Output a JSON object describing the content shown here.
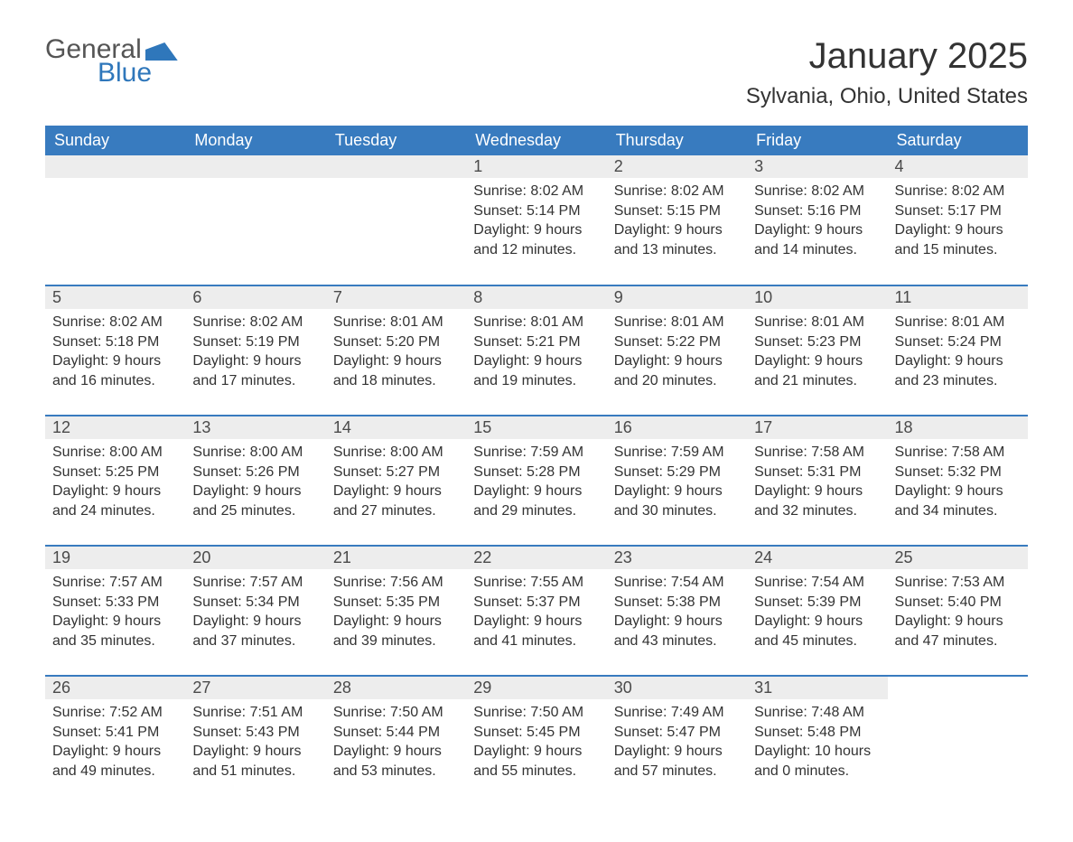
{
  "logo": {
    "line1": "General",
    "line2": "Blue"
  },
  "title": "January 2025",
  "location": "Sylvania, Ohio, United States",
  "colors": {
    "header_bg": "#387bbf",
    "header_text": "#ffffff",
    "daynum_bg": "#ededed",
    "row_border": "#387bbf",
    "text": "#333333",
    "logo_blue": "#2f77bb",
    "background": "#ffffff"
  },
  "typography": {
    "title_fontsize": 40,
    "location_fontsize": 24,
    "header_fontsize": 18,
    "daynum_fontsize": 18,
    "body_fontsize": 16
  },
  "day_labels": [
    "Sunday",
    "Monday",
    "Tuesday",
    "Wednesday",
    "Thursday",
    "Friday",
    "Saturday"
  ],
  "weeks": [
    [
      null,
      null,
      null,
      {
        "n": "1",
        "sunrise": "8:02 AM",
        "sunset": "5:14 PM",
        "daylight": "9 hours and 12 minutes."
      },
      {
        "n": "2",
        "sunrise": "8:02 AM",
        "sunset": "5:15 PM",
        "daylight": "9 hours and 13 minutes."
      },
      {
        "n": "3",
        "sunrise": "8:02 AM",
        "sunset": "5:16 PM",
        "daylight": "9 hours and 14 minutes."
      },
      {
        "n": "4",
        "sunrise": "8:02 AM",
        "sunset": "5:17 PM",
        "daylight": "9 hours and 15 minutes."
      }
    ],
    [
      {
        "n": "5",
        "sunrise": "8:02 AM",
        "sunset": "5:18 PM",
        "daylight": "9 hours and 16 minutes."
      },
      {
        "n": "6",
        "sunrise": "8:02 AM",
        "sunset": "5:19 PM",
        "daylight": "9 hours and 17 minutes."
      },
      {
        "n": "7",
        "sunrise": "8:01 AM",
        "sunset": "5:20 PM",
        "daylight": "9 hours and 18 minutes."
      },
      {
        "n": "8",
        "sunrise": "8:01 AM",
        "sunset": "5:21 PM",
        "daylight": "9 hours and 19 minutes."
      },
      {
        "n": "9",
        "sunrise": "8:01 AM",
        "sunset": "5:22 PM",
        "daylight": "9 hours and 20 minutes."
      },
      {
        "n": "10",
        "sunrise": "8:01 AM",
        "sunset": "5:23 PM",
        "daylight": "9 hours and 21 minutes."
      },
      {
        "n": "11",
        "sunrise": "8:01 AM",
        "sunset": "5:24 PM",
        "daylight": "9 hours and 23 minutes."
      }
    ],
    [
      {
        "n": "12",
        "sunrise": "8:00 AM",
        "sunset": "5:25 PM",
        "daylight": "9 hours and 24 minutes."
      },
      {
        "n": "13",
        "sunrise": "8:00 AM",
        "sunset": "5:26 PM",
        "daylight": "9 hours and 25 minutes."
      },
      {
        "n": "14",
        "sunrise": "8:00 AM",
        "sunset": "5:27 PM",
        "daylight": "9 hours and 27 minutes."
      },
      {
        "n": "15",
        "sunrise": "7:59 AM",
        "sunset": "5:28 PM",
        "daylight": "9 hours and 29 minutes."
      },
      {
        "n": "16",
        "sunrise": "7:59 AM",
        "sunset": "5:29 PM",
        "daylight": "9 hours and 30 minutes."
      },
      {
        "n": "17",
        "sunrise": "7:58 AM",
        "sunset": "5:31 PM",
        "daylight": "9 hours and 32 minutes."
      },
      {
        "n": "18",
        "sunrise": "7:58 AM",
        "sunset": "5:32 PM",
        "daylight": "9 hours and 34 minutes."
      }
    ],
    [
      {
        "n": "19",
        "sunrise": "7:57 AM",
        "sunset": "5:33 PM",
        "daylight": "9 hours and 35 minutes."
      },
      {
        "n": "20",
        "sunrise": "7:57 AM",
        "sunset": "5:34 PM",
        "daylight": "9 hours and 37 minutes."
      },
      {
        "n": "21",
        "sunrise": "7:56 AM",
        "sunset": "5:35 PM",
        "daylight": "9 hours and 39 minutes."
      },
      {
        "n": "22",
        "sunrise": "7:55 AM",
        "sunset": "5:37 PM",
        "daylight": "9 hours and 41 minutes."
      },
      {
        "n": "23",
        "sunrise": "7:54 AM",
        "sunset": "5:38 PM",
        "daylight": "9 hours and 43 minutes."
      },
      {
        "n": "24",
        "sunrise": "7:54 AM",
        "sunset": "5:39 PM",
        "daylight": "9 hours and 45 minutes."
      },
      {
        "n": "25",
        "sunrise": "7:53 AM",
        "sunset": "5:40 PM",
        "daylight": "9 hours and 47 minutes."
      }
    ],
    [
      {
        "n": "26",
        "sunrise": "7:52 AM",
        "sunset": "5:41 PM",
        "daylight": "9 hours and 49 minutes."
      },
      {
        "n": "27",
        "sunrise": "7:51 AM",
        "sunset": "5:43 PM",
        "daylight": "9 hours and 51 minutes."
      },
      {
        "n": "28",
        "sunrise": "7:50 AM",
        "sunset": "5:44 PM",
        "daylight": "9 hours and 53 minutes."
      },
      {
        "n": "29",
        "sunrise": "7:50 AM",
        "sunset": "5:45 PM",
        "daylight": "9 hours and 55 minutes."
      },
      {
        "n": "30",
        "sunrise": "7:49 AM",
        "sunset": "5:47 PM",
        "daylight": "9 hours and 57 minutes."
      },
      {
        "n": "31",
        "sunrise": "7:48 AM",
        "sunset": "5:48 PM",
        "daylight": "10 hours and 0 minutes."
      },
      null
    ]
  ],
  "labels": {
    "sunrise": "Sunrise: ",
    "sunset": "Sunset: ",
    "daylight": "Daylight: "
  }
}
